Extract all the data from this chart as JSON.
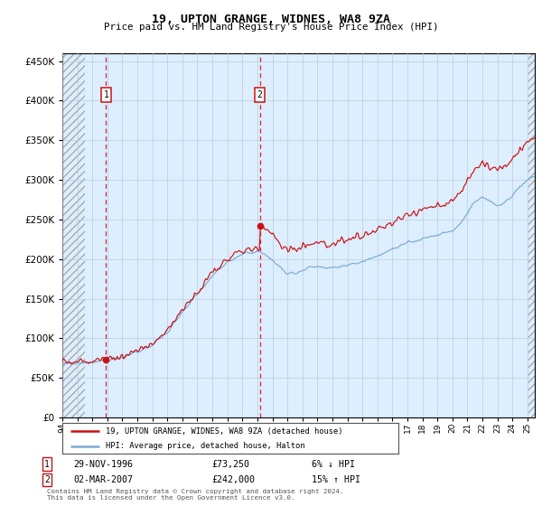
{
  "title": "19, UPTON GRANGE, WIDNES, WA8 9ZA",
  "subtitle": "Price paid vs. HM Land Registry's House Price Index (HPI)",
  "legend_line1": "19, UPTON GRANGE, WIDNES, WA8 9ZA (detached house)",
  "legend_line2": "HPI: Average price, detached house, Halton",
  "transaction1_date": "29-NOV-1996",
  "transaction1_price": 73250,
  "transaction1_note": "6% ↓ HPI",
  "transaction2_date": "02-MAR-2007",
  "transaction2_price": 242000,
  "transaction2_note": "15% ↑ HPI",
  "footer": "Contains HM Land Registry data © Crown copyright and database right 2024.\nThis data is licensed under the Open Government Licence v3.0.",
  "hpi_color": "#7aaad4",
  "price_color": "#cc1111",
  "background_color": "#ddeeff",
  "grid_color": "#bbccdd",
  "vline_color": "#dd2222",
  "ylim": [
    0,
    460000
  ],
  "yticks": [
    0,
    50000,
    100000,
    150000,
    200000,
    250000,
    300000,
    350000,
    400000,
    450000
  ],
  "start_year": 1994,
  "end_year": 2025.5,
  "transaction1_x": 1996.91,
  "transaction2_x": 2007.17
}
